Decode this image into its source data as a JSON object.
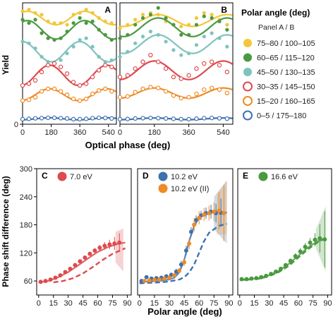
{
  "colors": {
    "yellow": "#f2c73a",
    "green": "#4a9a3f",
    "teal": "#7fc3bd",
    "red": "#de4a4e",
    "orange": "#f08a24",
    "blue": "#3e72ae",
    "axis": "#000000"
  },
  "chart_data": [
    {
      "id": "A",
      "type": "scatter",
      "panel_label": "A",
      "xlabel": "Optical phase (deg)",
      "ylabel": "Yield",
      "x_ticks": [
        0,
        180,
        360,
        540
      ],
      "y_ticks": [
        0
      ],
      "xlim": [
        0,
        590
      ],
      "ylim": [
        0,
        7.2
      ],
      "series": [
        {
          "name": "75–80 / 100–105",
          "color": "yellow",
          "filled": true,
          "offset": 6.3,
          "amp": 0.4,
          "phase_deg": 30,
          "x": [
            0,
            40,
            80,
            120,
            160,
            200,
            240,
            280,
            320,
            360,
            400,
            440,
            480,
            520,
            560
          ],
          "y": [
            6.7,
            6.8,
            6.6,
            6.5,
            6.1,
            6.0,
            6.0,
            5.9,
            6.5,
            6.6,
            6.8,
            6.6,
            6.3,
            6.1,
            6.0
          ]
        },
        {
          "name": "60–65 / 115–120",
          "color": "green",
          "filled": true,
          "offset": 5.6,
          "amp": 0.55,
          "phase_deg": 30,
          "x": [
            0,
            40,
            80,
            120,
            160,
            200,
            240,
            280,
            320,
            360,
            400,
            440,
            480,
            520,
            560
          ],
          "y": [
            6.2,
            6.0,
            6.2,
            5.4,
            5.1,
            5.0,
            5.1,
            5.5,
            6.0,
            6.3,
            6.0,
            6.1,
            5.6,
            5.3,
            5.0
          ]
        },
        {
          "name": "45–50 / 130–135",
          "color": "teal",
          "filled": true,
          "offset": 4.3,
          "amp": 0.6,
          "phase_deg": 0,
          "x": [
            0,
            40,
            80,
            120,
            160,
            200,
            240,
            280,
            320,
            360,
            400,
            440,
            480,
            520,
            560
          ],
          "y": [
            4.9,
            4.8,
            4.5,
            4.0,
            3.7,
            3.6,
            3.8,
            4.2,
            4.6,
            5.0,
            5.1,
            4.6,
            4.0,
            3.7,
            3.8
          ]
        },
        {
          "name": "30–35 / 145–150",
          "color": "red",
          "filled": false,
          "offset": 2.9,
          "amp": 0.6,
          "phase_deg": 170,
          "x": [
            0,
            40,
            80,
            120,
            160,
            200,
            240,
            280,
            320,
            360,
            400,
            440,
            480,
            520,
            560
          ],
          "y": [
            2.3,
            2.4,
            2.6,
            3.1,
            3.5,
            3.6,
            3.4,
            3.0,
            2.5,
            2.3,
            2.4,
            2.8,
            3.2,
            3.5,
            3.4
          ]
        },
        {
          "name": "15–20 / 160–165",
          "color": "orange",
          "filled": false,
          "offset": 1.75,
          "amp": 0.35,
          "phase_deg": 170,
          "x": [
            0,
            40,
            80,
            120,
            160,
            200,
            240,
            280,
            320,
            360,
            400,
            440,
            480,
            520,
            560
          ],
          "y": [
            1.4,
            1.45,
            1.6,
            1.95,
            2.1,
            2.1,
            1.95,
            1.75,
            1.5,
            1.4,
            1.5,
            1.8,
            2.0,
            2.1,
            1.95
          ]
        },
        {
          "name": "0–5 / 175–180",
          "color": "blue",
          "filled": false,
          "offset": 0.32,
          "amp": 0.06,
          "phase_deg": 170,
          "x": [
            0,
            40,
            80,
            120,
            160,
            200,
            240,
            280,
            320,
            360,
            400,
            440,
            480,
            520,
            560
          ],
          "y": [
            0.3,
            0.32,
            0.35,
            0.36,
            0.38,
            0.38,
            0.36,
            0.34,
            0.3,
            0.3,
            0.32,
            0.36,
            0.38,
            0.37,
            0.34
          ]
        }
      ]
    },
    {
      "id": "B",
      "type": "scatter",
      "panel_label": "B",
      "xlabel": "Optical phase (deg)",
      "x_ticks": [
        0,
        180,
        360,
        540
      ],
      "xlim": [
        0,
        590
      ],
      "ylim": [
        0,
        7.2
      ],
      "series": [
        {
          "name": "75–80 / 100–105",
          "color": "yellow",
          "filled": true,
          "offset": 6.15,
          "amp": 0.35,
          "phase_deg": 200,
          "x": [
            0,
            40,
            80,
            120,
            160,
            200,
            240,
            280,
            320,
            360,
            400,
            440,
            480,
            520,
            560
          ],
          "y": [
            5.7,
            5.9,
            6.2,
            6.5,
            6.6,
            6.5,
            6.1,
            5.9,
            5.8,
            5.9,
            6.3,
            6.6,
            6.5,
            6.2,
            5.9
          ]
        },
        {
          "name": "60–65 / 115–120",
          "color": "green",
          "filled": true,
          "offset": 5.75,
          "amp": 0.55,
          "phase_deg": 200,
          "x": [
            0,
            40,
            80,
            120,
            160,
            200,
            240,
            280,
            320,
            360,
            400,
            440,
            480,
            520,
            560
          ],
          "y": [
            5.1,
            5.3,
            5.9,
            6.3,
            6.5,
            6.9,
            6.3,
            5.9,
            5.3,
            5.3,
            5.9,
            6.4,
            6.3,
            6.1,
            5.6
          ]
        },
        {
          "name": "45–50 / 130–135",
          "color": "teal",
          "filled": true,
          "offset": 4.75,
          "amp": 0.55,
          "phase_deg": 200,
          "x": [
            0,
            40,
            80,
            120,
            160,
            200,
            240,
            280,
            320,
            360,
            400,
            440,
            480,
            520,
            560
          ],
          "y": [
            4.0,
            4.3,
            4.8,
            5.2,
            5.5,
            5.3,
            4.9,
            4.4,
            4.1,
            4.2,
            4.7,
            5.2,
            5.4,
            5.1,
            4.6
          ]
        },
        {
          "name": "30–35 / 145–150",
          "color": "red",
          "filled": false,
          "offset": 3.2,
          "amp": 0.55,
          "phase_deg": 180,
          "x": [
            0,
            40,
            80,
            120,
            160,
            200,
            240,
            280,
            320,
            360,
            400,
            440,
            480,
            520,
            560
          ],
          "y": [
            2.8,
            2.9,
            3.3,
            3.7,
            4.1,
            3.7,
            3.3,
            2.8,
            2.7,
            2.9,
            3.3,
            3.6,
            3.7,
            3.5,
            3.1
          ]
        },
        {
          "name": "15–20 / 160–165",
          "color": "orange",
          "filled": false,
          "offset": 1.85,
          "amp": 0.3,
          "phase_deg": 180,
          "x": [
            0,
            40,
            80,
            120,
            160,
            200,
            240,
            280,
            320,
            360,
            400,
            440,
            480,
            520,
            560
          ],
          "y": [
            1.6,
            1.65,
            1.9,
            2.1,
            2.2,
            2.15,
            1.95,
            1.7,
            1.55,
            1.6,
            1.8,
            2.05,
            2.15,
            2.05,
            1.85
          ]
        },
        {
          "name": "0–5 / 175–180",
          "color": "blue",
          "filled": false,
          "offset": 0.32,
          "amp": 0.05,
          "phase_deg": 180,
          "x": [
            0,
            40,
            80,
            120,
            160,
            200,
            240,
            280,
            320,
            360,
            400,
            440,
            480,
            520,
            560
          ],
          "y": [
            0.3,
            0.31,
            0.34,
            0.36,
            0.37,
            0.36,
            0.34,
            0.32,
            0.3,
            0.3,
            0.33,
            0.36,
            0.37,
            0.35,
            0.33
          ]
        }
      ]
    },
    {
      "id": "C",
      "type": "scatter",
      "panel_label": "C",
      "xlabel": "Polar angle (deg)",
      "ylabel": "Phase shift difference (deg)",
      "x_ticks": [
        0,
        15,
        30,
        45,
        60,
        75,
        90
      ],
      "y_ticks": [
        60,
        120,
        180,
        240,
        300
      ],
      "xlim": [
        -2,
        94
      ],
      "ylim": [
        30,
        300
      ],
      "legend": [
        {
          "label": "7.0 eV",
          "color": "red"
        }
      ],
      "series": [
        {
          "name": "7.0 eV",
          "color": "red",
          "filled": true,
          "x": [
            2,
            7,
            12,
            17,
            22,
            27,
            32,
            37,
            42,
            47,
            52,
            57,
            62,
            67,
            72,
            77,
            82
          ],
          "y": [
            58,
            60,
            63,
            67,
            72,
            79,
            86,
            94,
            102,
            110,
            118,
            125,
            131,
            135,
            138,
            140,
            142
          ],
          "err": [
            4,
            4,
            4,
            4,
            4,
            4,
            4,
            4,
            4,
            4,
            4,
            5,
            6,
            8,
            10,
            14,
            20
          ]
        }
      ],
      "fit_solid": {
        "x": [
          0,
          10,
          20,
          30,
          40,
          50,
          60,
          70,
          80,
          88
        ],
        "y": [
          57,
          60,
          68,
          79,
          93,
          108,
          122,
          132,
          139,
          142
        ]
      },
      "fit_dashed": {
        "x": [
          15,
          25,
          35,
          45,
          55,
          65,
          75,
          88
        ],
        "y": [
          57,
          60,
          66,
          76,
          90,
          105,
          118,
          130
        ]
      },
      "band": {
        "x": [
          78,
          86
        ],
        "y_low": [
          100,
          80
        ],
        "y_high": [
          165,
          172
        ]
      }
    },
    {
      "id": "D",
      "type": "scatter",
      "panel_label": "D",
      "xlabel": "Polar angle (deg)",
      "x_ticks": [
        0,
        15,
        30,
        45,
        60,
        75,
        90
      ],
      "xlim": [
        -2,
        94
      ],
      "ylim": [
        30,
        300
      ],
      "legend": [
        {
          "label": "10.2 eV",
          "color": "blue"
        },
        {
          "label": "10.2 eV (II)",
          "color": "orange"
        }
      ],
      "series": [
        {
          "name": "10.2 eV",
          "color": "blue",
          "filled": true,
          "x": [
            2,
            7,
            12,
            17,
            22,
            27,
            32,
            37,
            42,
            47,
            52,
            57,
            62,
            67,
            72,
            77,
            82
          ],
          "y": [
            60,
            68,
            65,
            66,
            67,
            70,
            73,
            80,
            95,
            125,
            165,
            190,
            200,
            205,
            208,
            205,
            206
          ],
          "err": [
            4,
            4,
            4,
            4,
            4,
            4,
            5,
            6,
            8,
            10,
            10,
            10,
            10,
            12,
            15,
            20,
            30
          ]
        },
        {
          "name": "10.2 eV (II)",
          "color": "orange",
          "filled": true,
          "x": [
            5,
            10,
            15,
            20,
            25,
            30,
            35,
            40,
            45,
            50,
            55,
            60,
            65,
            70,
            75,
            80,
            85
          ],
          "y": [
            60,
            61,
            62,
            63,
            65,
            67,
            72,
            82,
            100,
            140,
            180,
            195,
            202,
            205,
            208,
            210,
            205
          ],
          "err": [
            4,
            4,
            4,
            4,
            4,
            4,
            5,
            6,
            8,
            12,
            14,
            14,
            14,
            16,
            20,
            40,
            60
          ]
        }
      ],
      "fit_solid": {
        "x": [
          0,
          10,
          20,
          30,
          35,
          40,
          45,
          50,
          55,
          60,
          65,
          70,
          80,
          88
        ],
        "y": [
          58,
          59,
          60,
          63,
          67,
          78,
          105,
          145,
          178,
          195,
          202,
          206,
          208,
          206
        ]
      },
      "fit_dashed": {
        "x": [
          0,
          10,
          20,
          30,
          40,
          45,
          50,
          55,
          60,
          65,
          70,
          80,
          88
        ],
        "y": [
          55,
          56,
          57,
          59,
          63,
          68,
          78,
          95,
          120,
          145,
          163,
          178,
          182
        ]
      },
      "band": {
        "x": [
          75,
          88
        ],
        "y_low": [
          170,
          140
        ],
        "y_high": [
          240,
          275
        ]
      }
    },
    {
      "id": "E",
      "type": "scatter",
      "panel_label": "E",
      "xlabel": "Polar angle (deg)",
      "x_ticks": [
        0,
        15,
        30,
        45,
        60,
        75,
        90
      ],
      "xlim": [
        -2,
        94
      ],
      "ylim": [
        30,
        300
      ],
      "legend": [
        {
          "label": "16.6 eV",
          "color": "green"
        }
      ],
      "series": [
        {
          "name": "16.6 eV",
          "color": "green",
          "filled": true,
          "x": [
            2,
            7,
            12,
            17,
            22,
            27,
            32,
            37,
            42,
            47,
            52,
            57,
            62,
            67,
            72,
            77,
            82,
            87
          ],
          "y": [
            64,
            64,
            65,
            66,
            68,
            71,
            75,
            80,
            86,
            94,
            103,
            113,
            123,
            133,
            142,
            148,
            151,
            149
          ],
          "err": [
            3,
            3,
            3,
            3,
            3,
            3,
            4,
            4,
            4,
            4,
            5,
            6,
            7,
            8,
            10,
            14,
            30,
            60
          ]
        }
      ],
      "fit_solid": {
        "x": [
          0,
          10,
          20,
          30,
          40,
          50,
          60,
          70,
          80,
          88
        ],
        "y": [
          63,
          64,
          66,
          72,
          82,
          96,
          114,
          132,
          145,
          150
        ]
      },
      "fit_dashed": {
        "x": [
          0,
          10,
          20,
          30,
          40,
          50,
          60,
          70,
          80,
          88
        ],
        "y": [
          62,
          63,
          65,
          70,
          79,
          92,
          110,
          128,
          143,
          152
        ]
      },
      "band": {
        "x": [
          78,
          88
        ],
        "y_low": [
          130,
          80
        ],
        "y_high": [
          170,
          220
        ]
      }
    }
  ],
  "legend": {
    "title": "Polar angle (deg)",
    "subtitle": "Panel A / B",
    "items": [
      {
        "label": "75–80 / 100–105",
        "color": "yellow",
        "filled": true
      },
      {
        "label": "60–65 / 115–120",
        "color": "green",
        "filled": true
      },
      {
        "label": "45–50 / 130–135",
        "color": "teal",
        "filled": true
      },
      {
        "label": "30–35 / 145–150",
        "color": "red",
        "filled": false
      },
      {
        "label": "15–20 / 160–165",
        "color": "orange",
        "filled": false
      },
      {
        "label": "0–5 / 175–180",
        "color": "blue",
        "filled": false
      }
    ]
  }
}
